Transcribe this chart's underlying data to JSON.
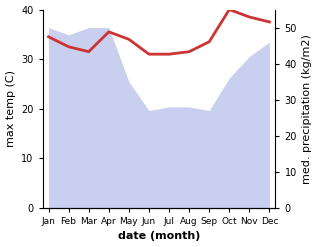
{
  "months": [
    "Jan",
    "Feb",
    "Mar",
    "Apr",
    "May",
    "Jun",
    "Jul",
    "Aug",
    "Sep",
    "Oct",
    "Nov",
    "Dec"
  ],
  "month_indices": [
    0,
    1,
    2,
    3,
    4,
    5,
    6,
    7,
    8,
    9,
    10,
    11
  ],
  "temp_max": [
    34.5,
    32.5,
    31.5,
    35.5,
    34.0,
    31.0,
    31.0,
    31.5,
    33.5,
    40.0,
    38.5,
    37.5
  ],
  "precip": [
    50,
    48,
    50,
    50,
    35,
    27,
    28,
    28,
    27,
    36,
    42,
    46
  ],
  "temp_ylim": [
    0,
    40
  ],
  "precip_ylim": [
    0,
    55
  ],
  "precip_yticks": [
    0,
    10,
    20,
    30,
    40,
    50
  ],
  "temp_yticks": [
    0,
    10,
    20,
    30,
    40
  ],
  "fill_color": "#b8c0ea",
  "fill_alpha": 0.75,
  "line_color": "#cc3333",
  "line_width": 2.0,
  "xlabel": "date (month)",
  "ylabel_left": "max temp (C)",
  "ylabel_right": "med. precipitation (kg/m2)",
  "bg_color": "#ffffff",
  "xlabel_fontsize": 8,
  "ylabel_fontsize": 8
}
